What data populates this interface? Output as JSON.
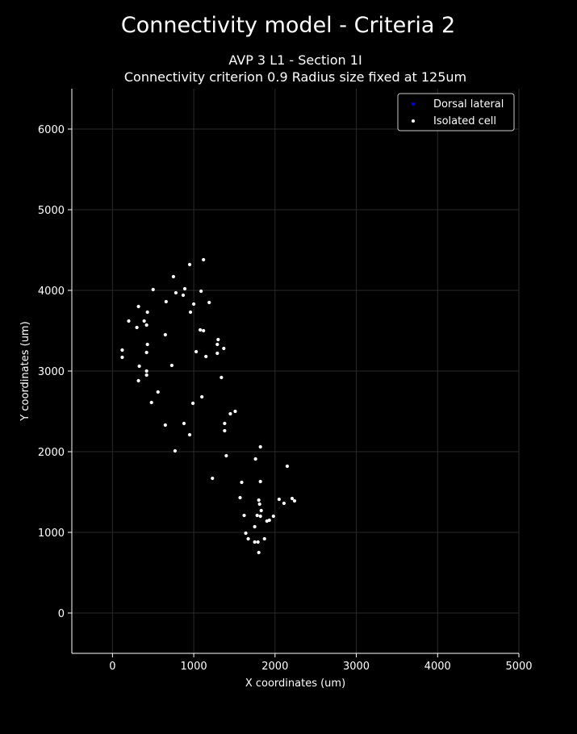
{
  "chart_data": {
    "type": "scatter",
    "suptitle": "Connectivity model - Criteria 2",
    "title_line1": "AVP 3 L1 - Section 1I",
    "title_line2": "Connectivity criterion 0.9  Radius size fixed at 125um",
    "xlabel": "X coordinates (um)",
    "ylabel": "Y coordinates (um)",
    "xlim": [
      -500,
      5000
    ],
    "ylim": [
      -500,
      6500
    ],
    "xticks": [
      0,
      1000,
      2000,
      3000,
      4000,
      5000
    ],
    "yticks": [
      0,
      1000,
      2000,
      3000,
      4000,
      5000,
      6000
    ],
    "grid": true,
    "legend_position": "top-right",
    "background": "#000000",
    "foreground": "#ffffff",
    "series": [
      {
        "name": "Dorsal lateral",
        "color": "#0000ff",
        "points": []
      },
      {
        "name": "Isolated cell",
        "color": "#ffffff",
        "points": [
          [
            1120,
            4380
          ],
          [
            950,
            4320
          ],
          [
            750,
            4170
          ],
          [
            500,
            4010
          ],
          [
            890,
            4020
          ],
          [
            1090,
            3990
          ],
          [
            780,
            3970
          ],
          [
            870,
            3940
          ],
          [
            660,
            3860
          ],
          [
            1190,
            3850
          ],
          [
            320,
            3800
          ],
          [
            1000,
            3830
          ],
          [
            430,
            3730
          ],
          [
            960,
            3730
          ],
          [
            200,
            3620
          ],
          [
            390,
            3620
          ],
          [
            420,
            3570
          ],
          [
            300,
            3540
          ],
          [
            1080,
            3510
          ],
          [
            1120,
            3500
          ],
          [
            650,
            3450
          ],
          [
            1300,
            3390
          ],
          [
            1290,
            3330
          ],
          [
            430,
            3330
          ],
          [
            1370,
            3280
          ],
          [
            120,
            3260
          ],
          [
            420,
            3230
          ],
          [
            1030,
            3240
          ],
          [
            1290,
            3220
          ],
          [
            1150,
            3180
          ],
          [
            120,
            3170
          ],
          [
            730,
            3070
          ],
          [
            330,
            3060
          ],
          [
            420,
            3000
          ],
          [
            420,
            2950
          ],
          [
            1340,
            2920
          ],
          [
            320,
            2880
          ],
          [
            560,
            2740
          ],
          [
            1100,
            2680
          ],
          [
            480,
            2610
          ],
          [
            990,
            2600
          ],
          [
            1510,
            2500
          ],
          [
            1450,
            2470
          ],
          [
            1380,
            2350
          ],
          [
            880,
            2350
          ],
          [
            650,
            2330
          ],
          [
            1380,
            2260
          ],
          [
            950,
            2210
          ],
          [
            1820,
            2060
          ],
          [
            770,
            2010
          ],
          [
            1400,
            1950
          ],
          [
            1760,
            1910
          ],
          [
            2150,
            1820
          ],
          [
            1230,
            1670
          ],
          [
            1820,
            1630
          ],
          [
            1590,
            1620
          ],
          [
            1570,
            1430
          ],
          [
            2050,
            1410
          ],
          [
            2210,
            1420
          ],
          [
            1800,
            1400
          ],
          [
            2240,
            1390
          ],
          [
            2110,
            1360
          ],
          [
            1810,
            1350
          ],
          [
            1830,
            1270
          ],
          [
            1620,
            1210
          ],
          [
            1780,
            1210
          ],
          [
            1980,
            1200
          ],
          [
            1820,
            1200
          ],
          [
            1930,
            1150
          ],
          [
            1900,
            1140
          ],
          [
            1750,
            1070
          ],
          [
            1640,
            990
          ],
          [
            1670,
            920
          ],
          [
            1870,
            920
          ],
          [
            1750,
            880
          ],
          [
            1790,
            880
          ],
          [
            1800,
            750
          ]
        ]
      }
    ]
  }
}
